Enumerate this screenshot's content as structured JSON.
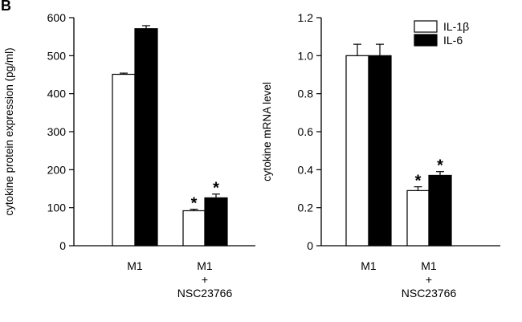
{
  "panel_label": "B",
  "chart_data": [
    {
      "type": "bar",
      "ylabel": "cytokine protein expression (pg/ml)",
      "ylim": [
        0,
        600
      ],
      "yticks": [
        "0",
        "100",
        "200",
        "300",
        "400",
        "500",
        "600"
      ],
      "categories": [
        [
          "M1"
        ],
        [
          "M1",
          "+",
          "NSC23766"
        ]
      ],
      "series": [
        {
          "fill": "#ffffff",
          "values": [
            451,
            92
          ],
          "errors": [
            3,
            4
          ]
        },
        {
          "fill": "#000000",
          "values": [
            571,
            126
          ],
          "errors": [
            8,
            10
          ]
        }
      ],
      "annotations": [
        {
          "category": 1,
          "series": 0,
          "text": "*"
        },
        {
          "category": 1,
          "series": 1,
          "text": "*"
        }
      ]
    },
    {
      "type": "bar",
      "ylabel": "cytokine mRNA level",
      "ylim": [
        0,
        1.2
      ],
      "yticks": [
        "0",
        "0.2",
        "0.4",
        "0.6",
        "0.8",
        "1.0",
        "1.2"
      ],
      "categories": [
        [
          "M1"
        ],
        [
          "M1",
          "+",
          "NSC23766"
        ]
      ],
      "series": [
        {
          "name": "IL-1β",
          "fill": "#ffffff",
          "values": [
            1.0,
            0.29
          ],
          "errors": [
            0.06,
            0.02
          ]
        },
        {
          "name": "IL-6",
          "fill": "#000000",
          "values": [
            1.0,
            0.37
          ],
          "errors": [
            0.06,
            0.02
          ]
        }
      ],
      "legend": "top-right",
      "annotations": [
        {
          "category": 1,
          "series": 0,
          "text": "*"
        },
        {
          "category": 1,
          "series": 1,
          "text": "*"
        }
      ]
    }
  ]
}
